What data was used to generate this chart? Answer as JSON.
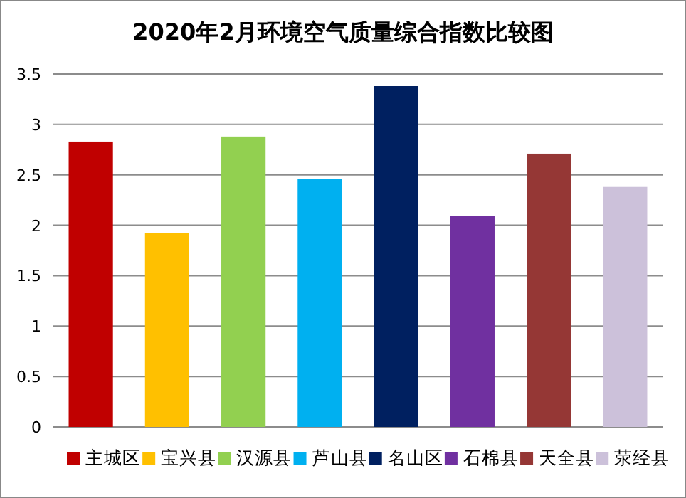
{
  "chart_data": {
    "type": "bar",
    "title": "2020年2月环境空气质量综合指数比较图",
    "categories": [
      null,
      null,
      null,
      null,
      null,
      null,
      null,
      null
    ],
    "series": [
      {
        "name": "主城区",
        "color": "#c00000",
        "values": [
          2.83,
          null,
          null,
          null,
          null,
          null,
          null,
          null
        ]
      },
      {
        "name": "宝兴县",
        "color": "#ffc000",
        "values": [
          null,
          1.92,
          null,
          null,
          null,
          null,
          null,
          null
        ]
      },
      {
        "name": "汉源县",
        "color": "#92d050",
        "values": [
          null,
          null,
          2.88,
          null,
          null,
          null,
          null,
          null
        ]
      },
      {
        "name": "芦山县",
        "color": "#00b0f0",
        "values": [
          null,
          null,
          null,
          2.46,
          null,
          null,
          null,
          null
        ]
      },
      {
        "name": "名山区",
        "color": "#002060",
        "values": [
          null,
          null,
          null,
          null,
          3.38,
          null,
          null,
          null
        ]
      },
      {
        "name": "石棉县",
        "color": "#7030a0",
        "values": [
          null,
          null,
          null,
          null,
          null,
          2.09,
          null,
          null
        ]
      },
      {
        "name": "天全县",
        "color": "#953735",
        "values": [
          null,
          null,
          null,
          null,
          null,
          null,
          2.71,
          null
        ]
      },
      {
        "name": "荥经县",
        "color": "#ccc1da",
        "values": [
          null,
          null,
          null,
          null,
          null,
          null,
          null,
          2.38
        ]
      }
    ],
    "ylim": [
      0,
      3.5
    ],
    "yticks": [
      0,
      0.5,
      1,
      1.5,
      2,
      2.5,
      3,
      3.5
    ],
    "grid": "y",
    "legend": "bottom"
  }
}
